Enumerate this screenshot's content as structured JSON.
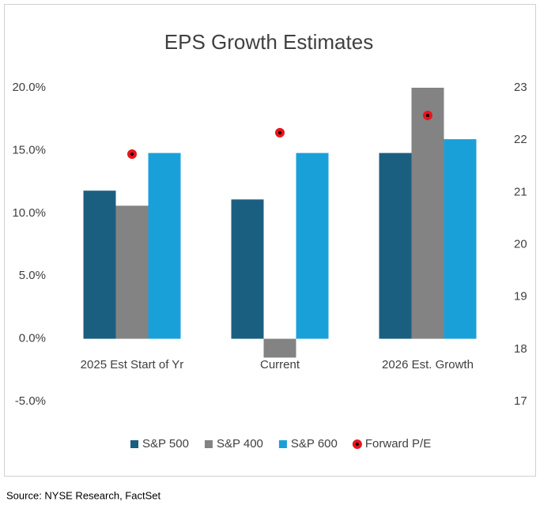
{
  "chart_data": {
    "type": "bar",
    "title": "EPS Growth Estimates",
    "categories": [
      "2025 Est Start of Yr",
      "Current",
      "2026 Est. Growth"
    ],
    "series": [
      {
        "name": "S&P 500",
        "color": "#1b5f80",
        "values": [
          11.8,
          11.1,
          14.8
        ]
      },
      {
        "name": "S&P 400",
        "color": "#838383",
        "values": [
          10.6,
          -1.5,
          20.0
        ]
      },
      {
        "name": "S&P 600",
        "color": "#1aa0d8",
        "values": [
          14.8,
          14.8,
          15.9
        ]
      },
      {
        "name": "Forward P/E",
        "color": "#e8141a",
        "type": "scatter",
        "axis": "y2",
        "values": [
          21.73,
          22.14,
          22.47
        ]
      }
    ],
    "ylim": [
      -5,
      20
    ],
    "yticks": [
      {
        "value": -5,
        "label": "-5.0%"
      },
      {
        "value": 0,
        "label": "0.0%"
      },
      {
        "value": 5,
        "label": "5.0%"
      },
      {
        "value": 10,
        "label": "10.0%"
      },
      {
        "value": 15,
        "label": "15.0%"
      },
      {
        "value": 20,
        "label": "20.0%"
      }
    ],
    "y2lim": [
      17,
      23
    ],
    "y2ticks": [
      17,
      18,
      19,
      20,
      21,
      22,
      23
    ],
    "legend": "bottom",
    "source": "Source: NYSE Research, FactSet"
  }
}
